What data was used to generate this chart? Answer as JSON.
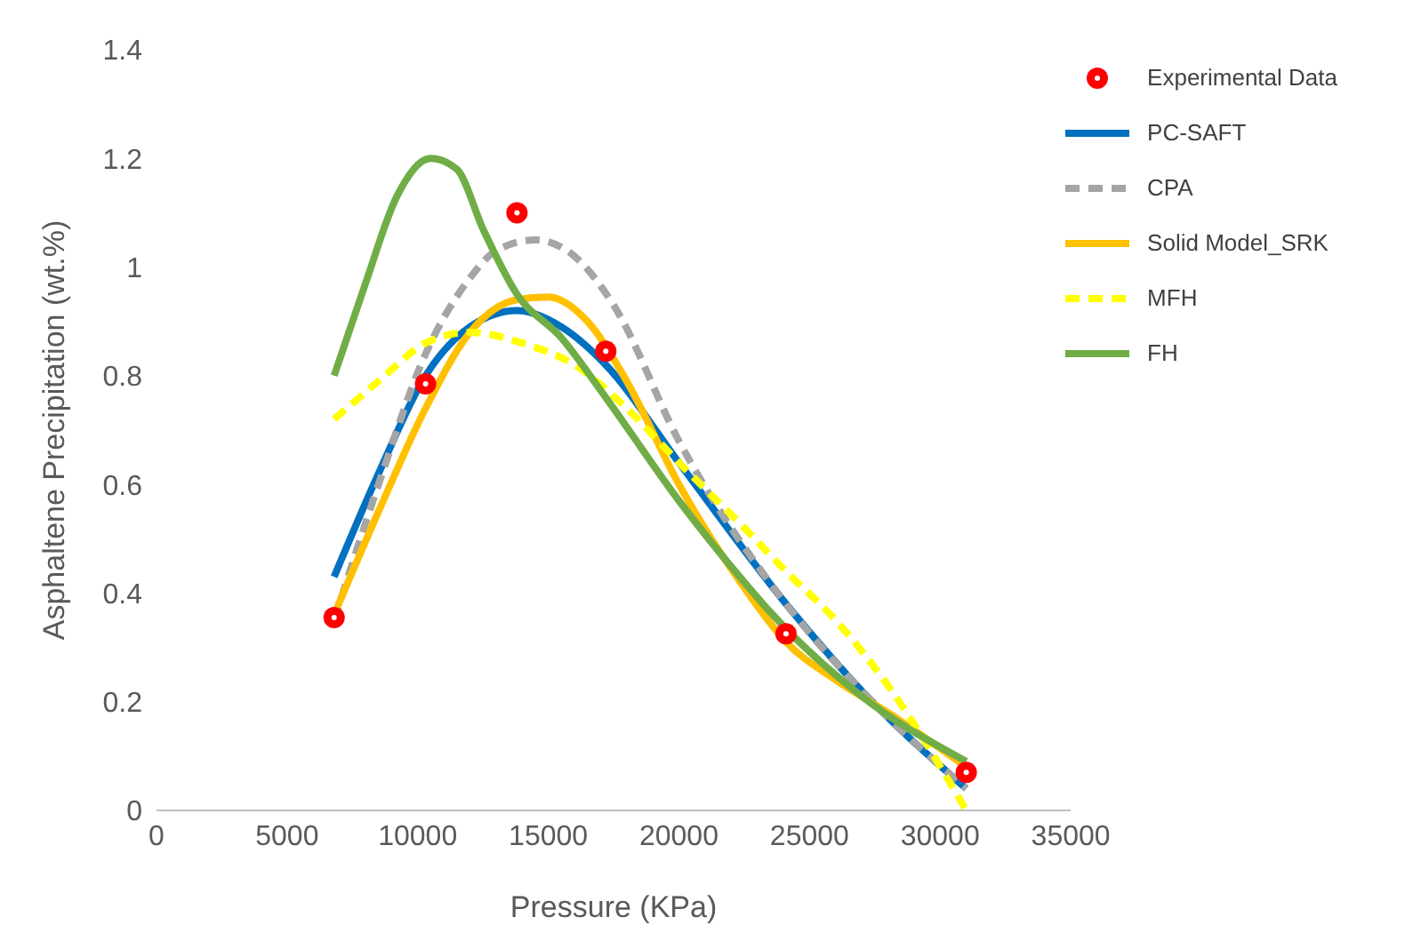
{
  "chart_data": {
    "type": "line",
    "xlabel": "Pressure (KPa)",
    "ylabel": "Asphaltene Precipitation (wt.%)",
    "xlim": [
      0,
      35000
    ],
    "xticks": [
      0,
      5000,
      10000,
      15000,
      20000,
      25000,
      30000,
      35000
    ],
    "ylim": [
      0,
      1.4
    ],
    "yticks": [
      0,
      0.2,
      0.4,
      0.6,
      0.8,
      1,
      1.2,
      1.4
    ],
    "grid": false,
    "legend": "top right",
    "series": [
      {
        "name": "Experimental Data",
        "type": "scatter",
        "marker": "circle",
        "color": "#ff0000",
        "x": [
          6800,
          10300,
          13800,
          17200,
          24100,
          31000
        ],
        "values": [
          0.355,
          0.785,
          1.1,
          0.845,
          0.325,
          0.07
        ]
      },
      {
        "name": "PC-SAFT",
        "color": "#0070c0",
        "line_style": "solid",
        "x": [
          6800,
          8500,
          10300,
          12000,
          13800,
          15500,
          17200,
          20000,
          24100,
          27000,
          31000
        ],
        "values": [
          0.43,
          0.62,
          0.8,
          0.89,
          0.92,
          0.89,
          0.82,
          0.64,
          0.38,
          0.22,
          0.04
        ]
      },
      {
        "name": "CPA",
        "color": "#a5a5a5",
        "line_style": "dashed",
        "x": [
          6800,
          8500,
          10300,
          12000,
          13000,
          14500,
          16000,
          17500,
          20000,
          24100,
          27000,
          31000
        ],
        "values": [
          0.35,
          0.6,
          0.84,
          0.98,
          1.03,
          1.05,
          1.02,
          0.93,
          0.68,
          0.38,
          0.22,
          0.04
        ]
      },
      {
        "name": "Solid Model_SRK",
        "color": "#ffc000",
        "line_style": "solid",
        "x": [
          6800,
          8500,
          10300,
          12000,
          13800,
          15000,
          16500,
          18000,
          20000,
          22500,
          24100,
          26000,
          28000,
          31000
        ],
        "values": [
          0.36,
          0.55,
          0.74,
          0.88,
          0.94,
          0.945,
          0.9,
          0.79,
          0.6,
          0.41,
          0.31,
          0.24,
          0.18,
          0.08
        ]
      },
      {
        "name": "MFH",
        "color": "#ffff00",
        "line_style": "dashed",
        "x": [
          6800,
          8500,
          10300,
          12000,
          14000,
          16000,
          18000,
          20000,
          22500,
          24100,
          26000,
          28000,
          31000
        ],
        "values": [
          0.72,
          0.79,
          0.86,
          0.88,
          0.86,
          0.82,
          0.74,
          0.64,
          0.52,
          0.44,
          0.35,
          0.23,
          0
        ]
      },
      {
        "name": "FH",
        "color": "#70ad47",
        "line_style": "solid",
        "x": [
          6800,
          8000,
          9200,
          10500,
          11500,
          12500,
          13800,
          15500,
          17200,
          20000,
          22500,
          23400,
          27000,
          31000
        ],
        "values": [
          0.8,
          0.97,
          1.13,
          1.2,
          1.18,
          1.07,
          0.95,
          0.87,
          0.76,
          0.57,
          0.42,
          0.37,
          0.21,
          0.09
        ]
      }
    ]
  }
}
